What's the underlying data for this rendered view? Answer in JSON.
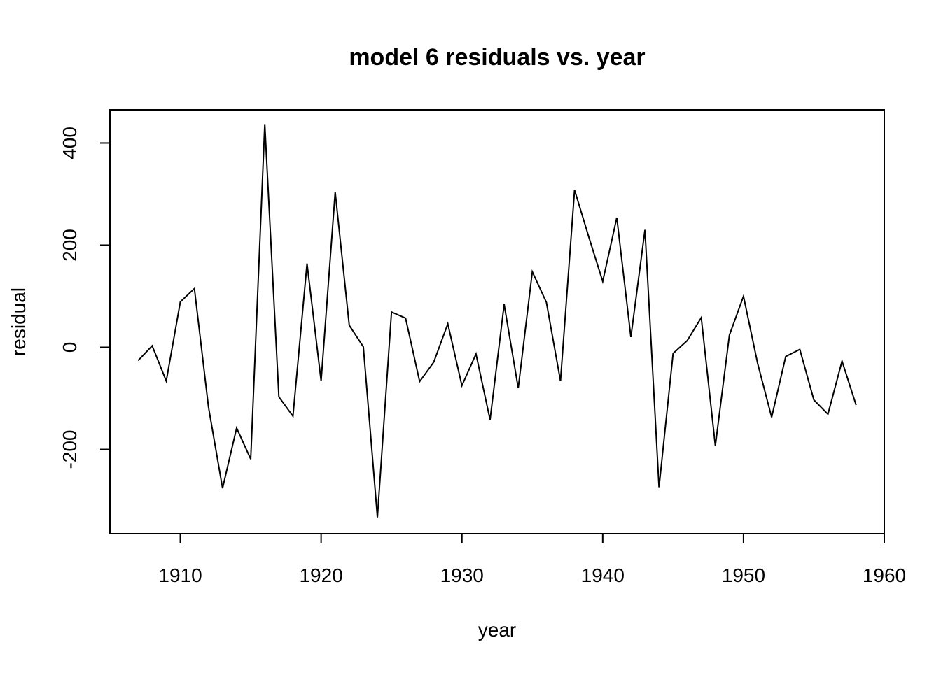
{
  "chart_data": {
    "type": "line",
    "title": "model 6 residuals vs. year",
    "xlabel": "year",
    "ylabel": "residual",
    "xlim": [
      1905,
      1960
    ],
    "ylim": [
      -365,
      465
    ],
    "x_ticks": [
      1910,
      1920,
      1930,
      1940,
      1950,
      1960
    ],
    "y_ticks": [
      -200,
      0,
      200,
      400
    ],
    "x_tick_labels": [
      "1910",
      "1920",
      "1930",
      "1940",
      "1950",
      "1960"
    ],
    "y_tick_labels": [
      "-200",
      "0",
      "200",
      "400"
    ],
    "grid": false,
    "line_color": "#000000",
    "series": [
      {
        "x": [
          1907,
          1908,
          1909,
          1910,
          1911,
          1912,
          1913,
          1914,
          1915,
          1916,
          1917,
          1918,
          1919,
          1920,
          1921,
          1922,
          1923,
          1924,
          1925,
          1926,
          1927,
          1928,
          1929,
          1930,
          1931,
          1932,
          1933,
          1934,
          1935,
          1936,
          1937,
          1938,
          1939,
          1940,
          1941,
          1942,
          1943,
          1944,
          1945,
          1946,
          1947,
          1948,
          1949,
          1950,
          1951,
          1952,
          1953,
          1954,
          1955,
          1956,
          1957,
          1958
        ],
        "values": [
          -26,
          3,
          -66,
          89,
          115,
          -117,
          -276,
          -158,
          -219,
          437,
          -97,
          -135,
          164,
          -66,
          304,
          43,
          1,
          -333,
          69,
          57,
          -67,
          -29,
          46,
          -75,
          -13,
          -142,
          84,
          -80,
          148,
          88,
          -66,
          308,
          217,
          129,
          254,
          20,
          230,
          -274,
          -12,
          13,
          58,
          -193,
          24,
          100,
          -31,
          -137,
          -18,
          -4,
          -103,
          -131,
          -27,
          -113
        ]
      }
    ]
  }
}
